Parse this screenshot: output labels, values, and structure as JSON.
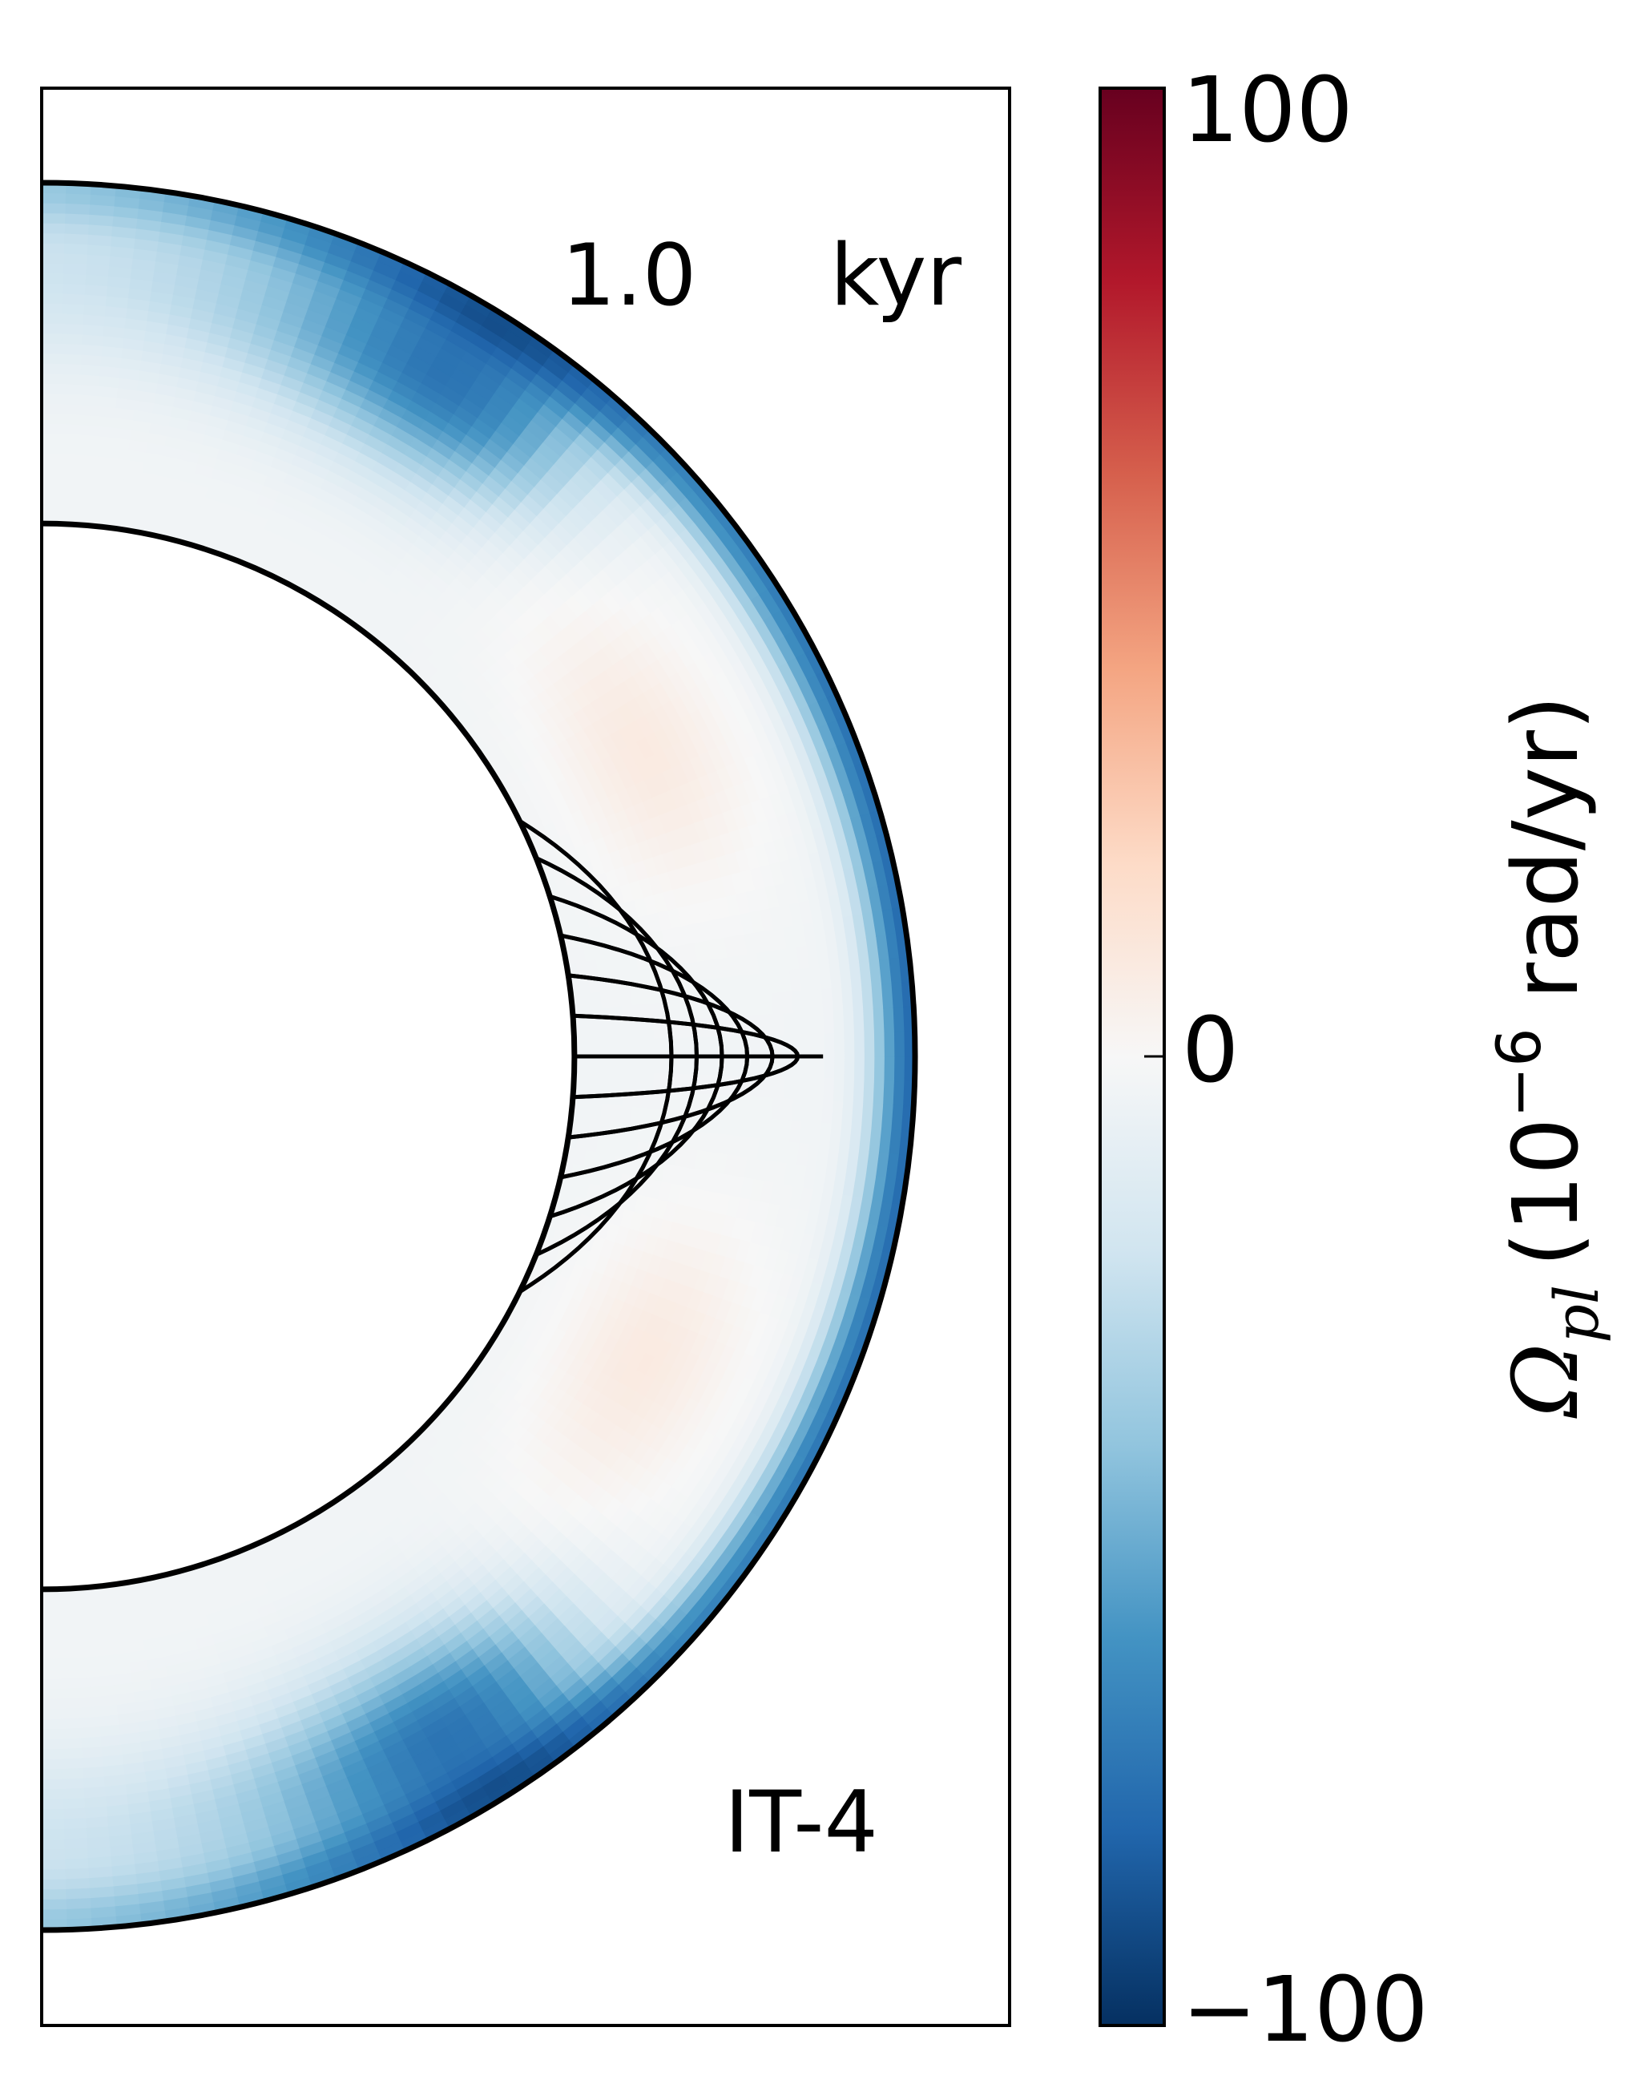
{
  "chart_data": {
    "type": "heatmap",
    "projection": "meridional half-annulus (spherical shell cross-section)",
    "time_value": "1.0",
    "time_unit": "kyr",
    "model_label": "IT-4",
    "colorbar": {
      "label_symbol": "Ω",
      "label_subscript": "pl",
      "label_unit_prefix": "(10",
      "label_exponent": "−6",
      "label_unit_suffix": " rad/yr)",
      "tick_labels": [
        "100",
        "0",
        "−100"
      ],
      "ticks": [
        100,
        0,
        -100
      ],
      "range": [
        -100,
        100
      ],
      "colormap": "RdBu_r",
      "colors": [
        "#053061",
        "#2166ac",
        "#4393c3",
        "#92c5de",
        "#d1e5f0",
        "#f7f7f7",
        "#fddbc7",
        "#f4a582",
        "#d6604d",
        "#b2182b",
        "#67001f"
      ]
    },
    "field": {
      "polar_caps_value": -70,
      "equatorial_outer_value": -75,
      "midlatitude_inner_value": 12,
      "interior_value": -3
    },
    "field_lines": 13,
    "inner_radius_fraction": 0.61
  }
}
